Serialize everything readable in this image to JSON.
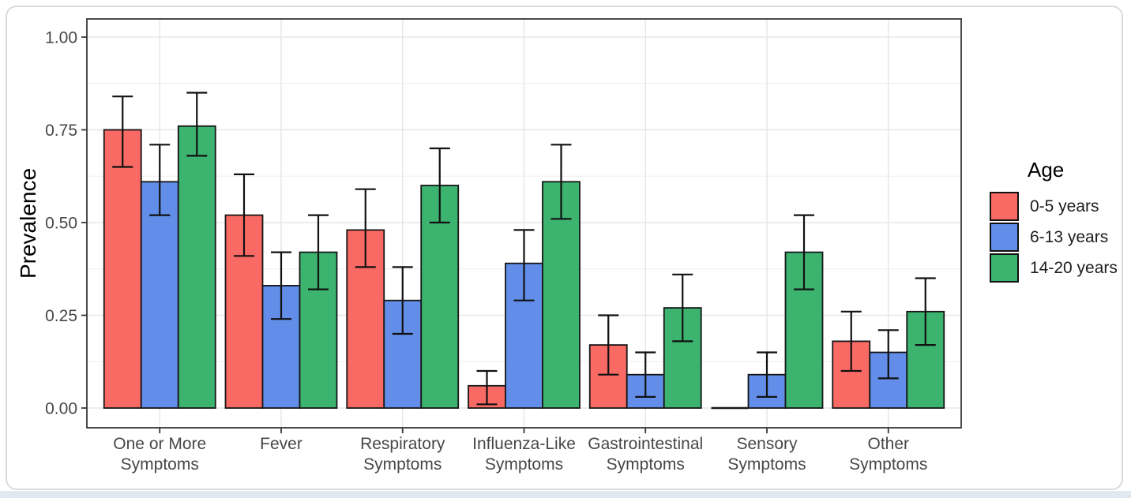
{
  "page": {
    "background": "#ffffff",
    "bottom_strip_color": "#e2e8f0",
    "card_background": "#ffffff",
    "card_border_color": "#dbdbdb"
  },
  "chart_data": {
    "type": "bar",
    "title": "",
    "xlabel": "",
    "ylabel": "Prevalence",
    "ylim": [
      0,
      1.05
    ],
    "ytick_labels": [
      "0.00",
      "0.25",
      "0.50",
      "0.75",
      "1.00"
    ],
    "grid": "major and minor horizontal gridlines; vertical major gridlines at category centers; dark panel border (theme_bw style)",
    "legend": {
      "title": "Age",
      "position": "right"
    },
    "categories": [
      [
        "One or More",
        "Symptoms"
      ],
      [
        "Fever"
      ],
      [
        "Respiratory",
        "Symptoms"
      ],
      [
        "Influenza-Like",
        "Symptoms"
      ],
      [
        "Gastrointestinal",
        "Symptoms"
      ],
      [
        "Sensory",
        "Symptoms"
      ],
      [
        "Other",
        "Symptoms"
      ]
    ],
    "series": [
      {
        "name": "0-5 years",
        "color": "#F96A64",
        "values": [
          0.75,
          0.52,
          0.48,
          0.06,
          0.17,
          0.0,
          0.18
        ],
        "error_low": [
          0.65,
          0.41,
          0.38,
          0.01,
          0.09,
          null,
          0.1
        ],
        "error_high": [
          0.84,
          0.63,
          0.59,
          0.1,
          0.25,
          null,
          0.26
        ]
      },
      {
        "name": "6-13 years",
        "color": "#628EE9",
        "values": [
          0.61,
          0.33,
          0.29,
          0.39,
          0.09,
          0.09,
          0.15
        ],
        "error_low": [
          0.52,
          0.24,
          0.2,
          0.29,
          0.03,
          0.03,
          0.08
        ],
        "error_high": [
          0.71,
          0.42,
          0.38,
          0.48,
          0.15,
          0.15,
          0.21
        ]
      },
      {
        "name": "14-20 years",
        "color": "#3CB36F",
        "values": [
          0.76,
          0.42,
          0.6,
          0.61,
          0.27,
          0.42,
          0.26
        ],
        "error_low": [
          0.68,
          0.32,
          0.5,
          0.51,
          0.18,
          0.32,
          0.17
        ],
        "error_high": [
          0.85,
          0.52,
          0.7,
          0.71,
          0.36,
          0.52,
          0.35
        ]
      }
    ],
    "style_colors": {
      "bar_outline": "#161616",
      "error_bar": "#111111",
      "panel_border": "#373737",
      "major_grid": "#e7e7e7",
      "minor_grid": "#f1f1f1",
      "tick_label": "#474747",
      "axis_title": "#000000"
    }
  }
}
